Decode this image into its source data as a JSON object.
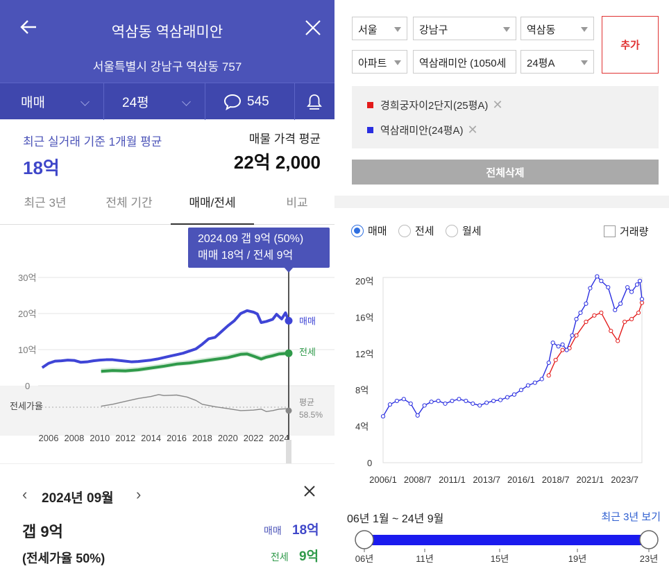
{
  "left": {
    "header": {
      "title": "역삼동 역삼래미안",
      "address": "서울특별시 강남구 역삼동 757",
      "deal_type": "매매",
      "size": "24평",
      "comment_count": "545"
    },
    "stats": {
      "recent_label": "최근 실거래 기준 1개월 평균",
      "recent_value": "18억",
      "listing_label": "매물 가격 평균",
      "listing_value": "22억 2,000"
    },
    "tabs": [
      "최근 3년",
      "전체 기간",
      "매매/전세",
      "비교"
    ],
    "tooltip": {
      "line1": "2024.09  갭 9억 (50%)",
      "line2": "매매 18억 / 전세 9억"
    },
    "chart": {
      "y_ticks": [
        "30억",
        "20억",
        "10억",
        "0"
      ],
      "ratio_label": "전세가율",
      "avg_label": "평균",
      "avg_value": "58.5%",
      "x_ticks": [
        "2006",
        "2008",
        "2010",
        "2012",
        "2014",
        "2016",
        "2018",
        "2020",
        "2022",
        "2024"
      ],
      "series_labels": {
        "sale": "매매",
        "jeonse": "전세"
      },
      "colors": {
        "sale": "#3f45d6",
        "jeonse": "#2f9a4a",
        "ratio": "#888888"
      }
    },
    "detail": {
      "month": "2024년 09월",
      "gap": "갭 9억",
      "ratio": "(전세가율 50%)",
      "sale_label": "매매",
      "sale_value": "18억",
      "jeonse_label": "전세",
      "jeonse_value": "9억"
    }
  },
  "right": {
    "filters": {
      "city": "서울",
      "district": "강남구",
      "dong": "역삼동",
      "type": "아파트",
      "complex": "역삼래미안 (1050세",
      "size": "24평A"
    },
    "add_label": "추가",
    "compare": [
      {
        "name": "경희궁자이2단지(25평A)",
        "color": "#e31b1b"
      },
      {
        "name": "역삼래미안(24평A)",
        "color": "#2a2ee0"
      }
    ],
    "delete_all": "전체삭제",
    "radios": [
      "매매",
      "전세",
      "월세"
    ],
    "radio_selected": "매매",
    "volume_label": "거래량",
    "range_text": "06년 1월 ~ 24년 9월",
    "recent_link": "최근 3년 보기",
    "slider_ticks": [
      "06년",
      "11년",
      "15년",
      "19년",
      "23년"
    ]
  },
  "chart_data": [
    {
      "type": "line",
      "title": "",
      "ylabel": "",
      "ylim": [
        0,
        30
      ],
      "x_range": [
        2006,
        2024.75
      ],
      "series": [
        {
          "name": "매매",
          "points": [
            [
              2005.5,
              5
            ],
            [
              2006,
              6.2
            ],
            [
              2006.5,
              6.8
            ],
            [
              2007,
              6.9
            ],
            [
              2007.5,
              7.1
            ],
            [
              2008,
              7.0
            ],
            [
              2008.5,
              6.5
            ],
            [
              2009,
              6.6
            ],
            [
              2009.5,
              6.9
            ],
            [
              2010,
              7.1
            ],
            [
              2010.5,
              7.2
            ],
            [
              2011,
              7.2
            ],
            [
              2011.5,
              7.0
            ],
            [
              2012,
              6.8
            ],
            [
              2012.5,
              6.6
            ],
            [
              2013,
              6.7
            ],
            [
              2013.5,
              6.9
            ],
            [
              2014,
              7.1
            ],
            [
              2014.5,
              7.4
            ],
            [
              2015,
              7.8
            ],
            [
              2015.5,
              8.2
            ],
            [
              2016,
              8.6
            ],
            [
              2016.5,
              9.0
            ],
            [
              2017,
              9.6
            ],
            [
              2017.5,
              10.2
            ],
            [
              2018,
              11.5
            ],
            [
              2018.5,
              13.0
            ],
            [
              2019,
              13.4
            ],
            [
              2019.5,
              15.0
            ],
            [
              2020,
              16.6
            ],
            [
              2020.5,
              18.0
            ],
            [
              2021,
              20.0
            ],
            [
              2021.5,
              20.8
            ],
            [
              2022,
              20.4
            ],
            [
              2022.3,
              19.9
            ],
            [
              2022.6,
              17.5
            ],
            [
              2023,
              17.8
            ],
            [
              2023.5,
              18.4
            ],
            [
              2023.8,
              19.8
            ],
            [
              2024.2,
              18.5
            ],
            [
              2024.5,
              20.2
            ],
            [
              2024.75,
              18.0
            ]
          ]
        },
        {
          "name": "전세",
          "points": [
            [
              2010.1,
              4.0
            ],
            [
              2011,
              4.2
            ],
            [
              2012,
              4.1
            ],
            [
              2013,
              4.4
            ],
            [
              2014,
              4.9
            ],
            [
              2015,
              5.4
            ],
            [
              2016,
              6.0
            ],
            [
              2017,
              6.3
            ],
            [
              2018,
              6.8
            ],
            [
              2019,
              7.3
            ],
            [
              2020,
              7.8
            ],
            [
              2021,
              8.7
            ],
            [
              2021.5,
              8.8
            ],
            [
              2022,
              8.2
            ],
            [
              2022.6,
              7.4
            ],
            [
              2023,
              7.9
            ],
            [
              2023.5,
              8.3
            ],
            [
              2024,
              8.8
            ],
            [
              2024.75,
              9.0
            ]
          ]
        },
        {
          "name": "전세가율",
          "points": [
            [
              2010.1,
              -5.8
            ],
            [
              2011,
              -5.4
            ],
            [
              2012,
              -4.8
            ],
            [
              2013,
              -4.2
            ],
            [
              2014,
              -3.8
            ],
            [
              2014.6,
              -3.4
            ],
            [
              2015,
              -3.6
            ],
            [
              2016,
              -3.5
            ],
            [
              2016.8,
              -3.9
            ],
            [
              2017.5,
              -4.6
            ],
            [
              2018,
              -5.4
            ],
            [
              2019,
              -5.9
            ],
            [
              2020,
              -6.3
            ],
            [
              2021,
              -6.7
            ],
            [
              2022,
              -6.6
            ],
            [
              2022.6,
              -6.4
            ],
            [
              2023,
              -6.9
            ],
            [
              2023.5,
              -6.7
            ],
            [
              2024,
              -6.4
            ],
            [
              2024.75,
              -6.3
            ]
          ]
        }
      ]
    },
    {
      "type": "line",
      "title": "",
      "ylabel": "",
      "ylim": [
        0,
        21
      ],
      "x_range": [
        2006.0,
        2024.75
      ],
      "x_ticks": [
        "2006/1",
        "2008/7",
        "2011/1",
        "2013/7",
        "2016/1",
        "2018/7",
        "2021/1",
        "2023/7"
      ],
      "y_ticks": [
        "0",
        "4억",
        "8억",
        "12억",
        "16억",
        "20억"
      ],
      "series": [
        {
          "name": "경희궁자이2단지(25평A)",
          "points": [
            [
              2018.0,
              9.6
            ],
            [
              2018.5,
              11.3
            ],
            [
              2019.0,
              12.4
            ],
            [
              2019.5,
              12.6
            ],
            [
              2020.0,
              14.0
            ],
            [
              2020.7,
              15.5
            ],
            [
              2021.3,
              16.2
            ],
            [
              2021.8,
              16.5
            ],
            [
              2022.5,
              14.5
            ],
            [
              2023.0,
              13.4
            ],
            [
              2023.5,
              15.5
            ],
            [
              2024.0,
              15.8
            ],
            [
              2024.5,
              16.5
            ],
            [
              2024.75,
              17.6
            ]
          ]
        },
        {
          "name": "역삼래미안(24평A)",
          "points": [
            [
              2006.0,
              5.1
            ],
            [
              2006.5,
              6.4
            ],
            [
              2007.0,
              6.8
            ],
            [
              2007.5,
              7.0
            ],
            [
              2008.0,
              6.5
            ],
            [
              2008.5,
              5.2
            ],
            [
              2009.0,
              6.3
            ],
            [
              2009.5,
              6.7
            ],
            [
              2010.0,
              6.8
            ],
            [
              2010.5,
              6.5
            ],
            [
              2011.0,
              6.8
            ],
            [
              2011.5,
              7.0
            ],
            [
              2012.0,
              6.8
            ],
            [
              2012.5,
              6.5
            ],
            [
              2013.0,
              6.3
            ],
            [
              2013.5,
              6.6
            ],
            [
              2014.0,
              6.8
            ],
            [
              2014.5,
              6.9
            ],
            [
              2015.0,
              7.2
            ],
            [
              2015.5,
              7.5
            ],
            [
              2016.0,
              8.0
            ],
            [
              2016.5,
              8.5
            ],
            [
              2017.0,
              8.8
            ],
            [
              2017.5,
              9.2
            ],
            [
              2018.0,
              11.0
            ],
            [
              2018.3,
              13.2
            ],
            [
              2018.7,
              12.8
            ],
            [
              2019.0,
              13.0
            ],
            [
              2019.3,
              12.4
            ],
            [
              2019.7,
              14.0
            ],
            [
              2020.0,
              15.8
            ],
            [
              2020.3,
              16.5
            ],
            [
              2020.7,
              17.5
            ],
            [
              2021.0,
              19.2
            ],
            [
              2021.5,
              20.5
            ],
            [
              2021.8,
              20.0
            ],
            [
              2022.3,
              19.3
            ],
            [
              2022.8,
              16.8
            ],
            [
              2023.2,
              17.5
            ],
            [
              2023.7,
              19.3
            ],
            [
              2024.0,
              18.8
            ],
            [
              2024.4,
              19.6
            ],
            [
              2024.6,
              20.0
            ],
            [
              2024.75,
              18.0
            ]
          ]
        }
      ]
    }
  ]
}
